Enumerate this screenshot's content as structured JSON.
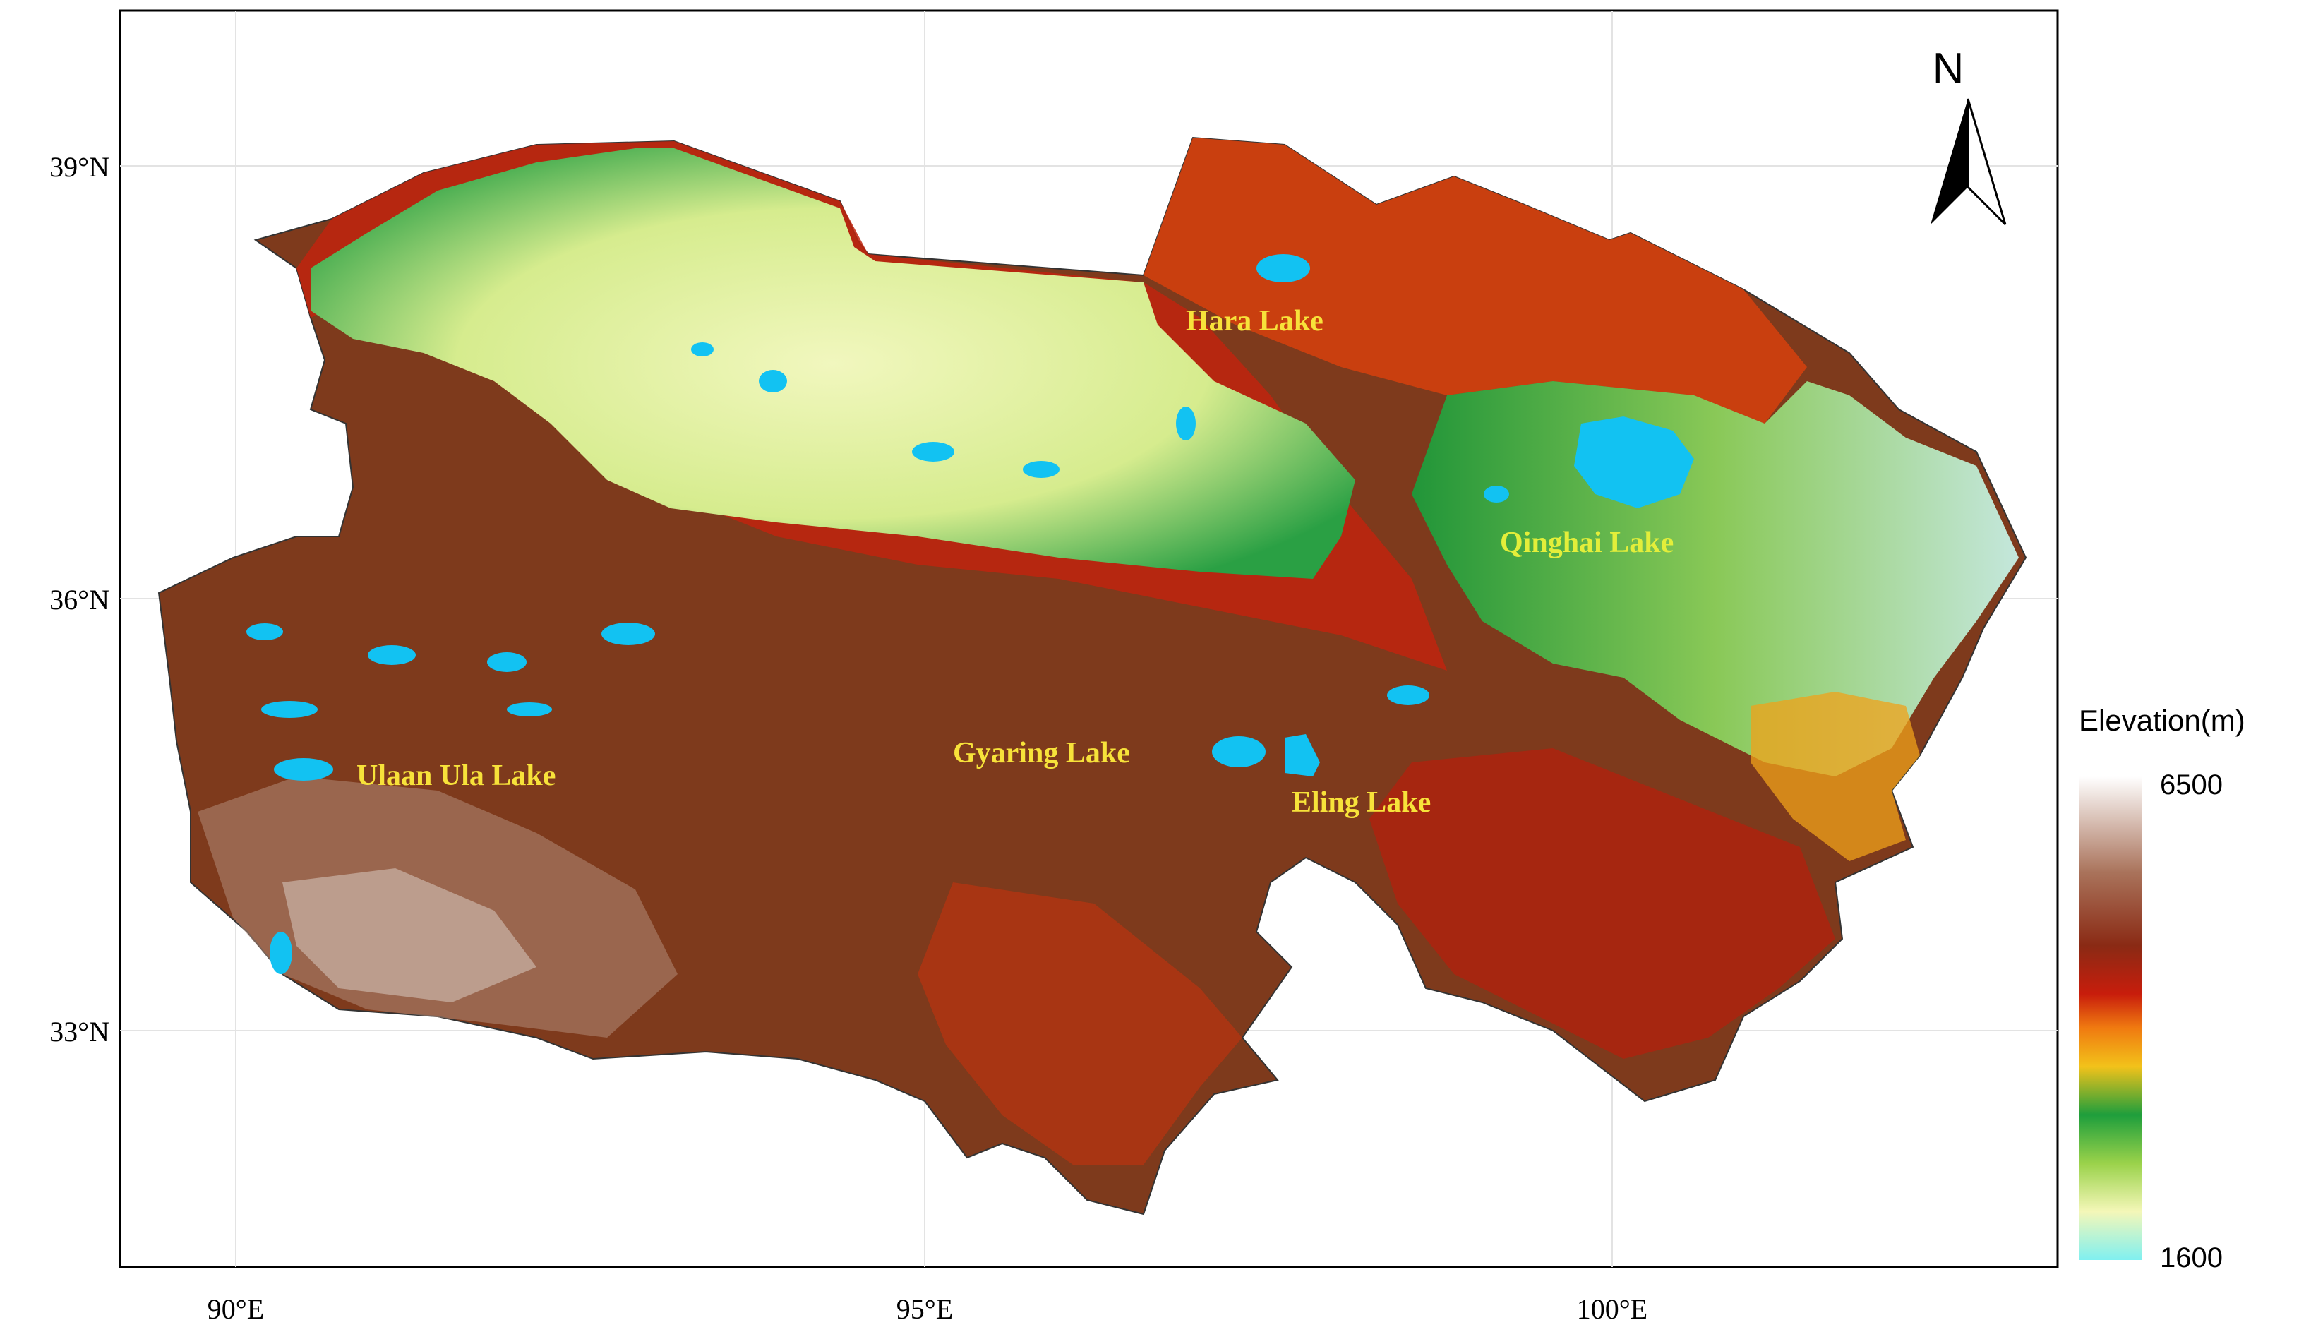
{
  "map": {
    "lon_ticks": [
      "90°E",
      "95°E",
      "100°E"
    ],
    "lat_ticks": [
      "39°N",
      "36°N",
      "33°N"
    ],
    "north_arrow_label": "N",
    "lakes": [
      {
        "name": "Hara Lake",
        "label_color": "#f7e23a"
      },
      {
        "name": "Qinghai Lake",
        "label_color": "#e3ee3a"
      },
      {
        "name": "Ulaan Ula Lake",
        "label_color": "#f7e23a"
      },
      {
        "name": "Gyaring Lake",
        "label_color": "#f7e23a"
      },
      {
        "name": "Eling Lake",
        "label_color": "#f7e23a"
      }
    ],
    "legend": {
      "title": "Elevation(m)",
      "max": "6500",
      "min": "1600"
    },
    "colors": {
      "lake_fill": "#12c2f2",
      "high": "#7a3e22",
      "mid_high": "#b8260c",
      "mid": "#f29a12",
      "low_mid": "#1fa03a",
      "low": "#eef5b5"
    }
  }
}
